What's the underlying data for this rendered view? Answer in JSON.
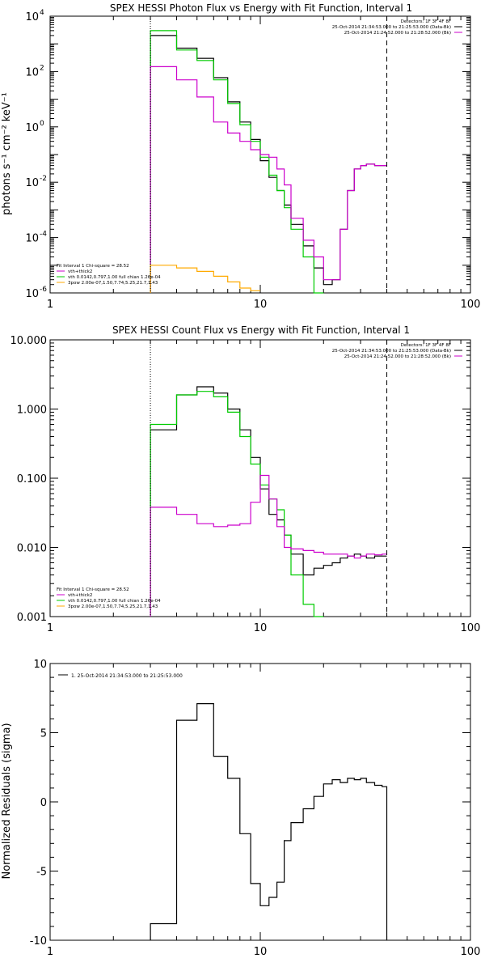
{
  "chart_data": [
    {
      "type": "line",
      "title": "SPEX HESSI Photon Flux vs Energy with Fit Function, Interval 1",
      "xlabel": "",
      "ylabel": "photons s⁻¹ cm⁻² keV⁻¹",
      "xscale": "log",
      "yscale": "log",
      "xlim": [
        1,
        100
      ],
      "ylim": [
        1e-06,
        10000
      ],
      "xtick_labels": [
        {
          "v": 1,
          "label": "1"
        },
        {
          "v": 10,
          "label": "10"
        },
        {
          "v": 100,
          "label": "100"
        }
      ],
      "ytick_labels": [
        {
          "v": 1e-06,
          "base": "10",
          "exp": "-6"
        },
        {
          "v": 0.0001,
          "base": "10",
          "exp": "-4"
        },
        {
          "v": 0.01,
          "base": "10",
          "exp": "-2"
        },
        {
          "v": 1,
          "base": "10",
          "exp": "0"
        },
        {
          "v": 100,
          "base": "10",
          "exp": "2"
        },
        {
          "v": 10000,
          "base": "10",
          "exp": "4"
        }
      ],
      "vlines": [
        {
          "x": 3.0,
          "style": "dotted",
          "color": "#000000"
        },
        {
          "x": 40.0,
          "style": "dashed",
          "color": "#000000"
        }
      ],
      "legend_top": [
        {
          "text": "Detectors: 1F 3F 4F 8F",
          "color": "#000000"
        },
        {
          "text": "25-Oct-2014 21:34:53.000 to 21:25:53.000 (Data-Bk)",
          "color": "#000000"
        },
        {
          "text": "25-Oct-2014 21:24:52.000 to 21:28:52.000 (Bk)",
          "color": "#cc00cc"
        }
      ],
      "legend_bottom": [
        {
          "text": "Fit Interval 1   Chi-square = 28.52",
          "color": "#000000"
        },
        {
          "text": "vth+thick2",
          "color": "#cc00cc"
        },
        {
          "text": "vth 0.0142,0.797,1.00  full chian 1.26e-04",
          "color": "#00cc00"
        },
        {
          "text": "3pow 2.00e-07,1.50,7.74,5.25,21.7,1.43",
          "color": "#ffaa00"
        }
      ],
      "series": [
        {
          "name": "",
          "color": "#000000",
          "style": "step",
          "edges": [
            3,
            4,
            5,
            6,
            7,
            8,
            9,
            10,
            11,
            12,
            13,
            14,
            16,
            18,
            20,
            22,
            24,
            26,
            28,
            30,
            32,
            35,
            38,
            40
          ],
          "values": [
            2000,
            700,
            300,
            60,
            8,
            1.5,
            0.35,
            0.06,
            0.015,
            0.005,
            0.0015,
            0.0003,
            5e-05,
            8e-06,
            2e-06,
            3e-06,
            0.0002,
            0.005,
            0.03,
            0.04,
            0.045,
            0.04,
            0.04
          ]
        },
        {
          "name": "",
          "color": "#00cc00",
          "style": "step",
          "edges": [
            3,
            4,
            5,
            6,
            7,
            8,
            9,
            10,
            11,
            12,
            13,
            14,
            16,
            18,
            20
          ],
          "values": [
            3000,
            600,
            250,
            50,
            7,
            1.2,
            0.3,
            0.08,
            0.018,
            0.005,
            0.0012,
            0.0002,
            2e-05,
            1e-06
          ]
        },
        {
          "name": "",
          "color": "#cc00cc",
          "style": "step",
          "edges": [
            3,
            4,
            5,
            6,
            7,
            8,
            9,
            10,
            11,
            12,
            13,
            14,
            16,
            18,
            20,
            22,
            24,
            26,
            28,
            30,
            32,
            35,
            38,
            40
          ],
          "values": [
            150,
            50,
            12,
            1.5,
            0.6,
            0.3,
            0.15,
            0.1,
            0.08,
            0.03,
            0.008,
            0.0005,
            8e-05,
            2e-05,
            3e-06,
            3e-06,
            0.0002,
            0.005,
            0.03,
            0.04,
            0.045,
            0.04,
            0.04
          ]
        },
        {
          "name": "",
          "color": "#ffaa00",
          "style": "step",
          "edges": [
            3,
            4,
            5,
            6,
            7,
            8,
            9,
            10
          ],
          "values": [
            1e-05,
            8e-06,
            6e-06,
            4e-06,
            2.5e-06,
            1.5e-06,
            1.2e-06
          ]
        }
      ]
    },
    {
      "type": "line",
      "title": "SPEX HESSI Count Flux vs Energy with Fit Function, Interval 1",
      "xlabel": "",
      "ylabel": "",
      "xscale": "log",
      "yscale": "log",
      "xlim": [
        1,
        100
      ],
      "ylim": [
        0.001,
        10
      ],
      "xtick_labels": [
        {
          "v": 1,
          "label": "1"
        },
        {
          "v": 10,
          "label": "10"
        },
        {
          "v": 100,
          "label": "100"
        }
      ],
      "ytick_labels": [
        {
          "v": 0.001,
          "label": "0.001"
        },
        {
          "v": 0.01,
          "label": "0.010"
        },
        {
          "v": 0.1,
          "label": "0.100"
        },
        {
          "v": 1,
          "label": "1.000"
        },
        {
          "v": 10,
          "label": "10.000"
        }
      ],
      "vlines": [
        {
          "x": 3.0,
          "style": "dotted",
          "color": "#000000"
        },
        {
          "x": 40.0,
          "style": "dashed",
          "color": "#000000"
        }
      ],
      "legend_top": [
        {
          "text": "Detectors: 1F 3F 4F 8F",
          "color": "#000000"
        },
        {
          "text": "25-Oct-2014 21:34:53.000 to 21:25:53.000 (Data-Bk)",
          "color": "#000000"
        },
        {
          "text": "25-Oct-2014 21:24:52.000 to 21:28:52.000 (Bk)",
          "color": "#cc00cc"
        }
      ],
      "legend_bottom": [
        {
          "text": "Fit Interval 1   Chi-square = 28.52",
          "color": "#000000"
        },
        {
          "text": "vth+thick2",
          "color": "#cc00cc"
        },
        {
          "text": "vth 0.0142,0.797,1.00  full chian 1.26e-04",
          "color": "#00cc00"
        },
        {
          "text": "3pow 2.00e-07,1.50,7.74,5.25,21.7,1.43",
          "color": "#ffaa00"
        }
      ],
      "series": [
        {
          "name": "",
          "color": "#000000",
          "style": "step",
          "edges": [
            3,
            4,
            5,
            6,
            7,
            8,
            9,
            10,
            11,
            12,
            13,
            14,
            16,
            18,
            20,
            22,
            24,
            26,
            28,
            30,
            32,
            35,
            38,
            40
          ],
          "values": [
            0.5,
            1.6,
            2.1,
            1.7,
            1.0,
            0.5,
            0.2,
            0.07,
            0.03,
            0.025,
            0.015,
            0.008,
            0.004,
            0.005,
            0.0055,
            0.006,
            0.007,
            0.0075,
            0.008,
            0.0075,
            0.007,
            0.0075,
            0.0075
          ]
        },
        {
          "name": "",
          "color": "#00cc00",
          "style": "step",
          "edges": [
            3,
            4,
            5,
            6,
            7,
            8,
            9,
            10,
            11,
            12,
            13,
            14,
            16,
            18,
            20
          ],
          "values": [
            0.6,
            1.6,
            1.8,
            1.5,
            0.9,
            0.4,
            0.16,
            0.08,
            0.05,
            0.035,
            0.015,
            0.004,
            0.0015,
            0.0006
          ]
        },
        {
          "name": "",
          "color": "#cc00cc",
          "style": "step",
          "edges": [
            3,
            4,
            5,
            6,
            7,
            8,
            9,
            10,
            11,
            12,
            13,
            14,
            16,
            18,
            20,
            22,
            24,
            26,
            28,
            30,
            32,
            35,
            38,
            40
          ],
          "values": [
            0.038,
            0.03,
            0.022,
            0.02,
            0.021,
            0.022,
            0.045,
            0.11,
            0.05,
            0.02,
            0.01,
            0.0095,
            0.009,
            0.0085,
            0.008,
            0.008,
            0.008,
            0.0075,
            0.007,
            0.0075,
            0.008,
            0.0078,
            0.008
          ]
        }
      ]
    },
    {
      "type": "line",
      "title": "",
      "xlabel": "",
      "ylabel": "Normalized Residuals (sigma)",
      "xscale": "log",
      "yscale": "linear",
      "xlim": [
        1,
        100
      ],
      "ylim": [
        -10,
        10
      ],
      "xtick_labels": [
        {
          "v": 1,
          "label": "1"
        },
        {
          "v": 10,
          "label": "10"
        },
        {
          "v": 100,
          "label": "100"
        }
      ],
      "ytick_labels": [
        {
          "v": -10,
          "label": "-10"
        },
        {
          "v": -5,
          "label": "-5"
        },
        {
          "v": 0,
          "label": "0"
        },
        {
          "v": 5,
          "label": "5"
        },
        {
          "v": 10,
          "label": "10"
        }
      ],
      "vlines": [],
      "legend_top": [],
      "legend_bottom": [],
      "legend_inside": {
        "text": "1. 25-Oct-2014 21:34:53.000 to 21:25:53.000",
        "color": "#000000"
      },
      "series": [
        {
          "name": "",
          "color": "#000000",
          "style": "step",
          "edges": [
            3,
            4,
            5,
            6,
            7,
            8,
            9,
            10,
            11,
            12,
            13,
            14,
            16,
            18,
            20,
            22,
            24,
            26,
            28,
            30,
            32,
            35,
            38,
            40
          ],
          "values": [
            -8.8,
            5.9,
            7.1,
            3.3,
            1.7,
            -2.3,
            -5.9,
            -7.5,
            -6.9,
            -5.8,
            -2.8,
            -1.5,
            -0.5,
            0.4,
            1.3,
            1.6,
            1.4,
            1.7,
            1.6,
            1.7,
            1.4,
            1.2,
            1.1
          ],
          "drop_to_min_at_end": true
        }
      ]
    }
  ]
}
